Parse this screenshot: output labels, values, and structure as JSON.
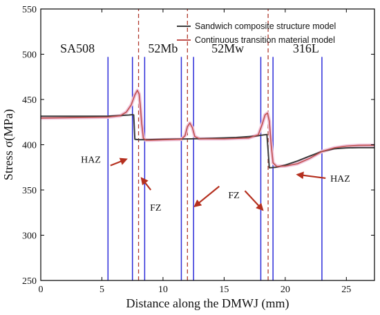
{
  "chart_data": {
    "type": "line",
    "xlabel": "Distance along the DMWJ (mm)",
    "ylabel": "Stress σ(MPa)",
    "xlim": [
      0,
      27.3
    ],
    "ylim": [
      250,
      550
    ],
    "xticks": [
      0,
      5,
      10,
      15,
      20,
      25
    ],
    "yticks": [
      250,
      300,
      350,
      400,
      450,
      500,
      550
    ],
    "grid": false,
    "legend_position": "top-right",
    "colors": {
      "sandwich": "#3a3a3a",
      "continuous": "#c0504d",
      "continuous_halo": "#f0c4dc",
      "interface_lines": "#2b2bd9",
      "fusion_lines": "#b03a2e",
      "arrows": "#b5301f"
    },
    "series": [
      {
        "name": "Sandwich composite structure model",
        "color": "#3a3a3a",
        "x": [
          0,
          2,
          4,
          5.5,
          6.5,
          7.2,
          7.5,
          7.6,
          7.7,
          8.0,
          8.5,
          10,
          11.6,
          12.3,
          14,
          16,
          17.5,
          18.5,
          18.6,
          18.7,
          19.2,
          20,
          21,
          22,
          23,
          24,
          25,
          26,
          27.3
        ],
        "y": [
          431.5,
          431.5,
          431.5,
          431.6,
          432.2,
          432.8,
          433.2,
          432.9,
          406,
          405.5,
          405.5,
          406,
          406.3,
          406.5,
          407,
          408,
          409.5,
          411.3,
          393,
          374.5,
          375,
          377.5,
          382,
          387.5,
          392.5,
          395.5,
          396.5,
          396.8,
          396.8
        ]
      },
      {
        "name": "Continuous transition material model",
        "color": "#c0504d",
        "x": [
          0,
          3,
          5.5,
          6.5,
          7.0,
          7.4,
          7.7,
          7.9,
          8.05,
          8.15,
          8.25,
          8.4,
          8.6,
          9,
          10,
          11.5,
          11.8,
          12.0,
          12.2,
          12.4,
          12.6,
          13,
          15,
          17,
          17.8,
          18.1,
          18.35,
          18.55,
          18.7,
          18.85,
          19.0,
          19.3,
          20,
          21,
          22,
          23,
          24,
          25,
          26,
          27.3
        ],
        "y": [
          429.5,
          430,
          430.5,
          432,
          436,
          444,
          455,
          460,
          456,
          442,
          424,
          407,
          405,
          405,
          405.5,
          406,
          410,
          420,
          424,
          419,
          409,
          406.5,
          406.5,
          407.5,
          411,
          422,
          433,
          435,
          426,
          400,
          380,
          376,
          376.5,
          379,
          385,
          392.5,
          396.5,
          398.5,
          399.3,
          399.5
        ]
      }
    ],
    "interface_lines_x": [
      5.5,
      7.5,
      8.5,
      11.5,
      12.5,
      18.0,
      19.0,
      23.0
    ],
    "fusion_lines_x": [
      8.0,
      12.0,
      18.6
    ],
    "region_labels": [
      {
        "text": "SA508",
        "x": 3.0,
        "y": 502
      },
      {
        "text": "52Mb",
        "x": 10.0,
        "y": 502
      },
      {
        "text": "52Mw",
        "x": 15.3,
        "y": 502
      },
      {
        "text": "316L",
        "x": 21.7,
        "y": 502
      }
    ],
    "annotations": [
      {
        "text": "HAZ",
        "x": 4.1,
        "y": 380
      },
      {
        "text": "FZ",
        "x": 9.4,
        "y": 327
      },
      {
        "text": "FZ",
        "x": 15.8,
        "y": 341
      },
      {
        "text": "HAZ",
        "x": 24.5,
        "y": 359
      }
    ],
    "arrows": [
      {
        "from": [
          5.7,
          377
        ],
        "to": [
          7.0,
          384
        ]
      },
      {
        "from": [
          9.0,
          350
        ],
        "to": [
          8.25,
          363
        ]
      },
      {
        "from": [
          14.6,
          354
        ],
        "to": [
          12.6,
          332
        ]
      },
      {
        "from": [
          16.7,
          349
        ],
        "to": [
          18.15,
          328
        ]
      },
      {
        "from": [
          23.3,
          363
        ],
        "to": [
          21.0,
          367
        ]
      }
    ]
  }
}
